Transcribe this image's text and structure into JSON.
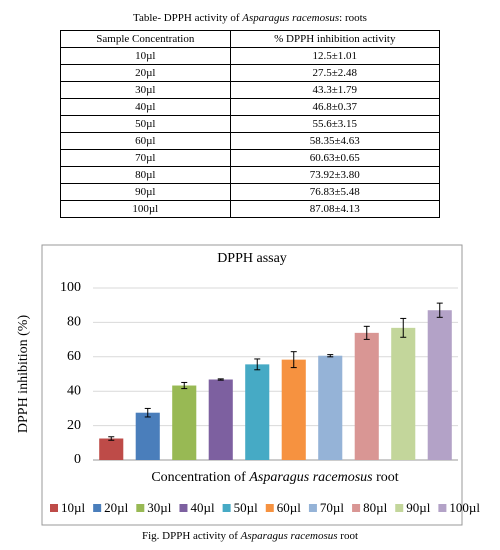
{
  "table": {
    "caption": [
      "Table- DPPH activity of ",
      "Asparagus racemosus",
      ": roots"
    ],
    "header": [
      "Sample Concentration",
      "% DPPH inhibition activity"
    ],
    "rows": [
      [
        "10µl",
        "12.5±1.01"
      ],
      [
        "20µl",
        "27.5±2.48"
      ],
      [
        "30µl",
        "43.3±1.79"
      ],
      [
        "40µl",
        "46.8±0.37"
      ],
      [
        "50µl",
        "55.6±3.15"
      ],
      [
        "60µl",
        "58.35±4.63"
      ],
      [
        "70µl",
        "60.63±0.65"
      ],
      [
        "80µl",
        "73.92±3.80"
      ],
      [
        "90µl",
        "76.83±5.48"
      ],
      [
        "100µl",
        "87.08±4.13"
      ]
    ]
  },
  "chart_data": {
    "type": "bar",
    "title": "DPPH assay",
    "y_label": "DPPH inhibition (%)",
    "x_label": [
      "Concentration of ",
      "Asparagus racemosus",
      " root"
    ],
    "categories": [
      "10µl",
      "20µl",
      "30µl",
      "40µl",
      "50µl",
      "60µl",
      "70µl",
      "80µl",
      "90µl",
      "100µl"
    ],
    "values": [
      12.5,
      27.5,
      43.3,
      46.8,
      55.6,
      58.35,
      60.63,
      73.92,
      76.83,
      87.08
    ],
    "errors": [
      1.01,
      2.48,
      1.79,
      0.37,
      3.15,
      4.63,
      0.65,
      3.8,
      5.48,
      4.13
    ],
    "colors": [
      "#be4b48",
      "#4a7ebb",
      "#98b954",
      "#7d60a0",
      "#46aac5",
      "#f69240",
      "#95b3d7",
      "#d99694",
      "#c3d69b",
      "#b3a2c7"
    ],
    "ylim": [
      0,
      100
    ],
    "yticks": [
      0,
      20,
      40,
      60,
      80,
      100
    ],
    "grid": true,
    "legend": "bottom"
  },
  "figure_caption": [
    "Fig.  DPPH activity of ",
    "Asparagus racemosus",
    " root"
  ]
}
